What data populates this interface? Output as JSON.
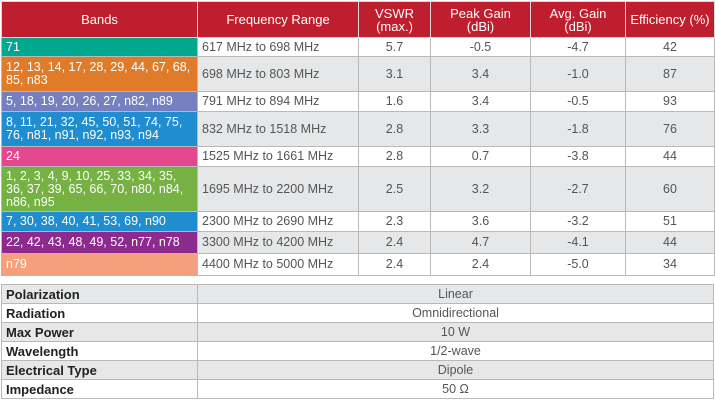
{
  "headers": {
    "bands": "Bands",
    "frequency": "Frequency Range",
    "vswr": "VSWR (max.)",
    "peak_gain": "Peak Gain (dBi)",
    "avg_gain": "Avg. Gain (dBi)",
    "efficiency": "Efficiency (%)"
  },
  "rows": [
    {
      "bands": "71",
      "color": "#00a88e",
      "frequency": "617 MHz to 698 MHz",
      "vswr": "5.7",
      "peak_gain": "-0.5",
      "avg_gain": "-4.7",
      "efficiency": "42"
    },
    {
      "bands": "12, 13, 14, 17, 28, 29, 44, 67, 68, 85, n83",
      "color": "#e07b2a",
      "frequency": "698 MHz to 803 MHz",
      "vswr": "3.1",
      "peak_gain": "3.4",
      "avg_gain": "-1.0",
      "efficiency": "87"
    },
    {
      "bands": "5, 18, 19, 20, 26, 27, n82, n89",
      "color": "#7680c1",
      "frequency": "791 MHz to 894 MHz",
      "vswr": "1.6",
      "peak_gain": "3.4",
      "avg_gain": "-0.5",
      "efficiency": "93"
    },
    {
      "bands": "8, 11, 21, 32, 45, 50, 51, 74, 75, 76, n81, n91, n92, n93, n94",
      "color": "#1f8dd0",
      "frequency": "832 MHz to 1518 MHz",
      "vswr": "2.8",
      "peak_gain": "3.3",
      "avg_gain": "-1.8",
      "efficiency": "76"
    },
    {
      "bands": "24",
      "color": "#e3488f",
      "frequency": "1525 MHz to 1661 MHz",
      "vswr": "2.8",
      "peak_gain": "0.7",
      "avg_gain": "-3.8",
      "efficiency": "44"
    },
    {
      "bands": "1, 2, 3, 4, 9, 10, 25, 33, 34, 35, 36, 37, 39, 65, 66, 70, n80, n84, n86, n95",
      "color": "#75b143",
      "frequency": "1695 MHz to 2200 MHz",
      "vswr": "2.5",
      "peak_gain": "3.2",
      "avg_gain": "-2.7",
      "efficiency": "60"
    },
    {
      "bands": "7, 30, 38, 40, 41, 53, 69, n90",
      "color": "#1f8dd0",
      "frequency": "2300 MHz to 2690 MHz",
      "vswr": "2.3",
      "peak_gain": "3.6",
      "avg_gain": "-3.2",
      "efficiency": "51"
    },
    {
      "bands": "22, 42, 43, 48, 49, 52, n77, n78",
      "color": "#8d2a8e",
      "frequency": "3300 MHz to 4200 MHz",
      "vswr": "2.4",
      "peak_gain": "4.7",
      "avg_gain": "-4.1",
      "efficiency": "44"
    },
    {
      "bands": "n79",
      "color": "#f5a07c",
      "frequency": "4400 MHz to 5000 MHz",
      "vswr": "2.4",
      "peak_gain": "2.4",
      "avg_gain": "-5.0",
      "efficiency": "34"
    }
  ],
  "properties": [
    {
      "label": "Polarization",
      "value": "Linear"
    },
    {
      "label": "Radiation",
      "value": "Omnidirectional"
    },
    {
      "label": "Max Power",
      "value": "10 W"
    },
    {
      "label": "Wavelength",
      "value": "1/2-wave"
    },
    {
      "label": "Electrical Type",
      "value": "Dipole"
    },
    {
      "label": "Impedance",
      "value": "50 Ω"
    }
  ],
  "colors": {
    "header": "#be1e2d",
    "alt_row": "#e6e7e8"
  }
}
